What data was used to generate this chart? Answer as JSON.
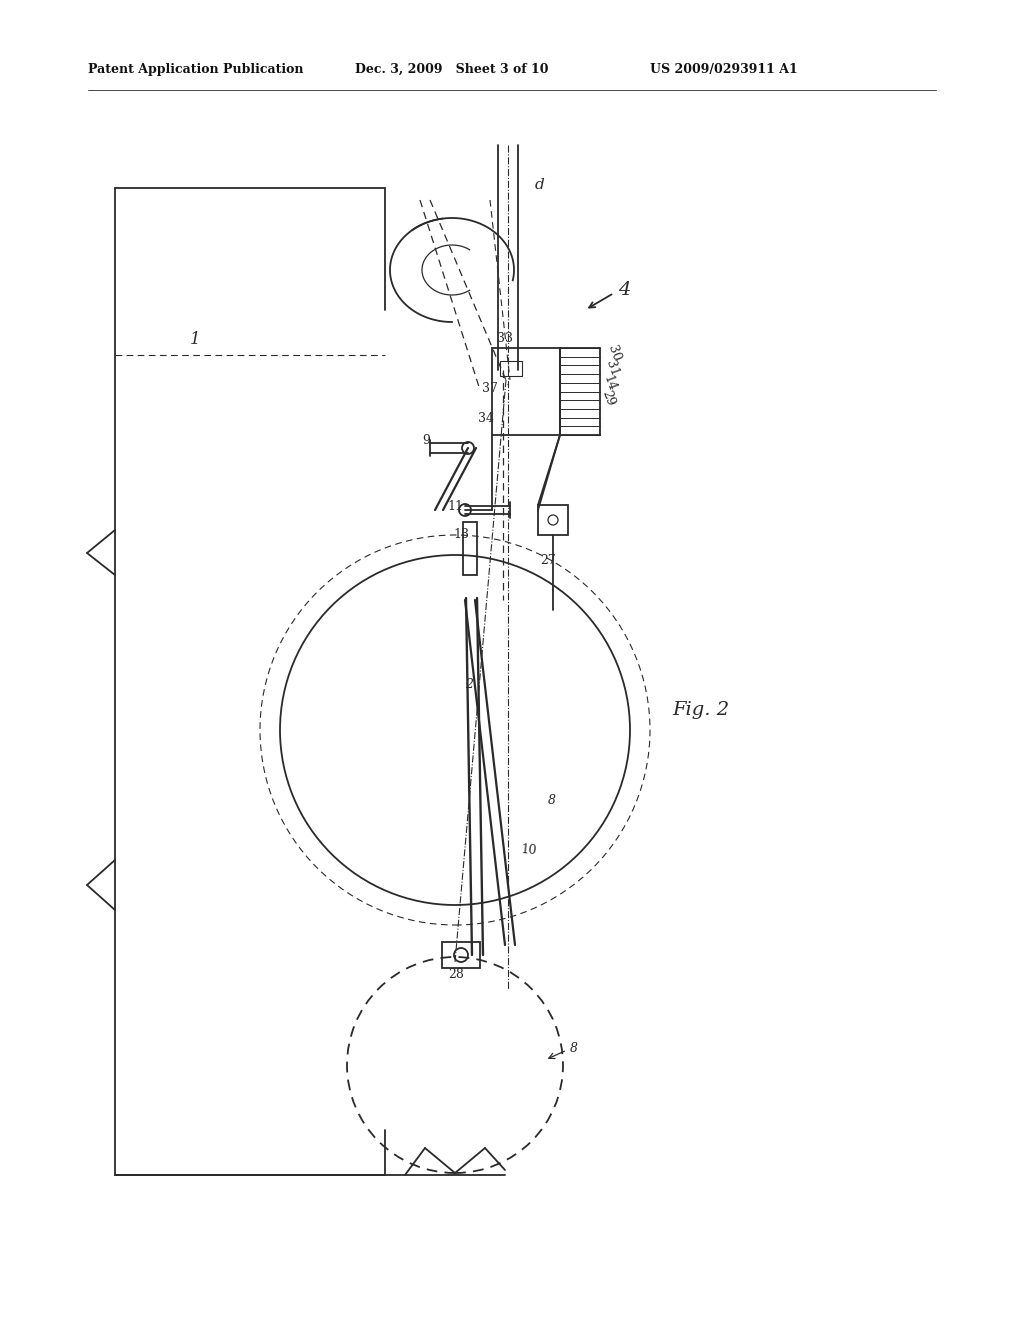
{
  "header_left": "Patent Application Publication",
  "header_mid": "Dec. 3, 2009   Sheet 3 of 10",
  "header_right": "US 2009/0293911 A1",
  "fig_label": "Fig. 2",
  "bg_color": "#ffffff",
  "line_color": "#2a2a2a",
  "lw": 1.3
}
